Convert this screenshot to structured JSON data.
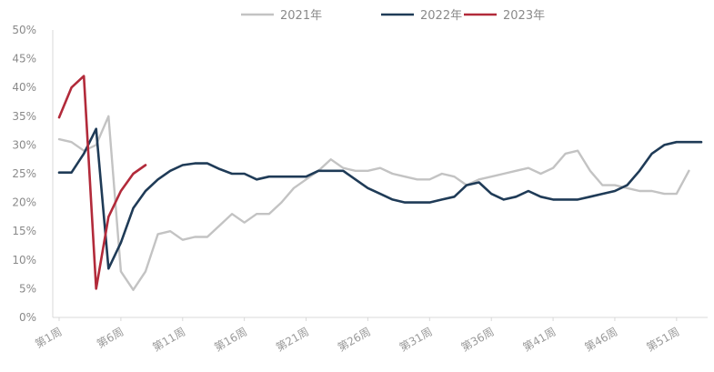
{
  "chart_data": {
    "type": "line",
    "title": "",
    "xlabel": "",
    "ylabel": "",
    "ylim": [
      0,
      50
    ],
    "yticks": [
      "0%",
      "5%",
      "10%",
      "15%",
      "20%",
      "25%",
      "30%",
      "35%",
      "40%",
      "45%",
      "50%"
    ],
    "xtick_labels": [
      "第1周",
      "第6周",
      "第11周",
      "第16周",
      "第21周",
      "第26周",
      "第31周",
      "第36周",
      "第41周",
      "第46周",
      "第51周"
    ],
    "xtick_weeks": [
      1,
      6,
      11,
      16,
      21,
      26,
      31,
      36,
      41,
      46,
      51
    ],
    "xlim": [
      1,
      53
    ],
    "grid": false,
    "legend_position": "top",
    "series": [
      {
        "name": "2021年",
        "color": "#c3c3c3",
        "x": [
          1,
          2,
          3,
          4,
          5,
          6,
          7,
          8,
          9,
          10,
          11,
          12,
          13,
          14,
          15,
          16,
          17,
          18,
          19,
          20,
          21,
          22,
          23,
          24,
          25,
          26,
          27,
          28,
          29,
          30,
          31,
          32,
          33,
          34,
          35,
          36,
          37,
          38,
          39,
          40,
          41,
          42,
          43,
          44,
          45,
          46,
          47,
          48,
          49,
          50,
          51,
          52
        ],
        "values": [
          31,
          30.5,
          29,
          30,
          35,
          8,
          4.8,
          8,
          14.5,
          15,
          13.5,
          14,
          14,
          16,
          18,
          16.5,
          18,
          18,
          20,
          22.5,
          24,
          25.5,
          27.5,
          26,
          25.5,
          25.5,
          26,
          25,
          24.5,
          24,
          24,
          25,
          24.5,
          23,
          24,
          24.5,
          25,
          25.5,
          26,
          25,
          26,
          28.5,
          29,
          25.5,
          23,
          23,
          22.5,
          22,
          22,
          21.5,
          21.5,
          25.5
        ]
      },
      {
        "name": "2022年",
        "color": "#1f3b57",
        "x": [
          1,
          2,
          3,
          4,
          5,
          6,
          7,
          8,
          9,
          10,
          11,
          12,
          13,
          14,
          15,
          16,
          17,
          18,
          19,
          20,
          21,
          22,
          23,
          24,
          25,
          26,
          27,
          28,
          29,
          30,
          31,
          32,
          33,
          34,
          35,
          36,
          37,
          38,
          39,
          40,
          41,
          42,
          43,
          44,
          45,
          46,
          47,
          48,
          49,
          50,
          51,
          52,
          53
        ],
        "values": [
          25.2,
          25.2,
          28.5,
          32.8,
          8.5,
          13,
          19,
          22,
          24,
          25.5,
          26.5,
          26.8,
          26.8,
          25.8,
          25,
          25,
          24,
          24.5,
          24.5,
          24.5,
          24.5,
          25.5,
          25.5,
          25.5,
          24,
          22.5,
          21.5,
          20.5,
          20,
          20,
          20,
          20.5,
          21,
          23,
          23.5,
          21.5,
          20.5,
          21,
          22,
          21,
          20.5,
          20.5,
          20.5,
          21,
          21.5,
          22,
          23,
          25.5,
          28.5,
          30,
          30.5,
          30.5,
          30.5
        ]
      },
      {
        "name": "2023年",
        "color": "#b22a3a",
        "x": [
          1,
          2,
          3,
          4,
          5,
          6,
          7,
          8
        ],
        "values": [
          34.8,
          40,
          42,
          5,
          17.5,
          22,
          25,
          26.5
        ]
      }
    ]
  }
}
